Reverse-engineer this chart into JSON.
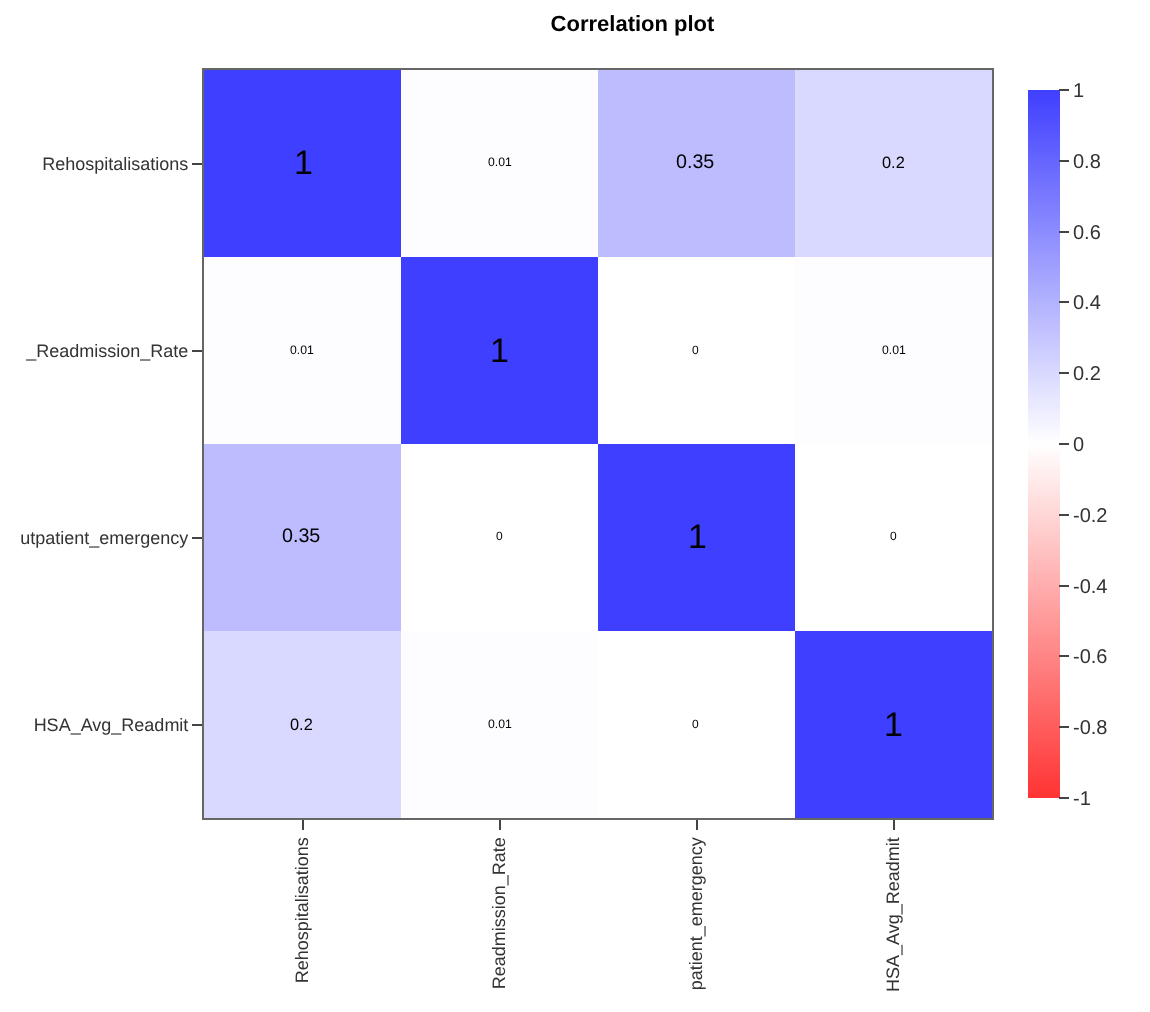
{
  "chart_data": {
    "type": "heatmap",
    "title": "Correlation plot",
    "categories": [
      "Rehospitalisations",
      "Readmission_Rate",
      "patient_emergency",
      "HSA_Avg_Readmit"
    ],
    "y_categories": [
      "Rehospitalisations",
      "_Readmission_Rate",
      "utpatient_emergency",
      "HSA_Avg_Readmit"
    ],
    "cells": [
      [
        1,
        0.01,
        0.35,
        0.2
      ],
      [
        0.01,
        1,
        0,
        0.01
      ],
      [
        0.35,
        0,
        1,
        0
      ],
      [
        0.2,
        0.01,
        0,
        1
      ]
    ],
    "clim": [
      -1,
      1
    ],
    "cticks": [
      -1,
      -0.8,
      -0.6,
      -0.4,
      -0.2,
      0,
      0.2,
      0.4,
      0.6,
      0.8,
      1
    ],
    "data_labels": true
  }
}
